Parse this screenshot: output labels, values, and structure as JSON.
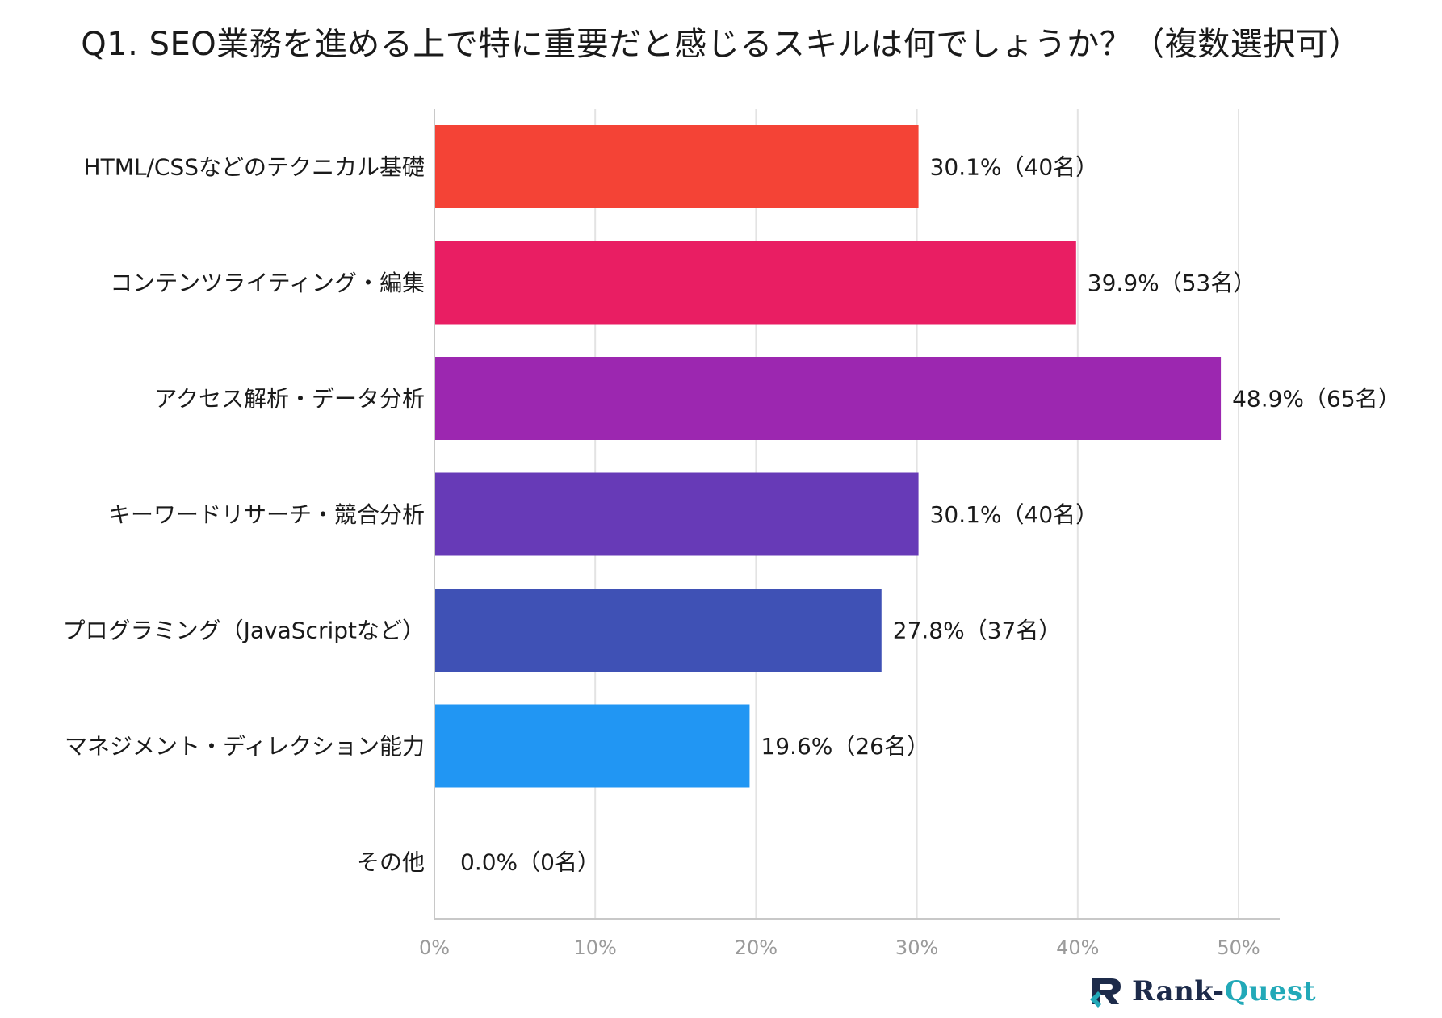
{
  "title": "Q1. SEO業務を進める上で特に重要だと感じるスキルは何でしょうか？（複数選択可）",
  "chart_data": {
    "type": "bar",
    "orientation": "horizontal",
    "title": "Q1. SEO業務を進める上で特に重要だと感じるスキルは何でしょうか？（複数選択可）",
    "xlabel": "",
    "ylabel": "",
    "xlim": [
      0,
      50
    ],
    "xticks": [
      0,
      10,
      20,
      30,
      40,
      50
    ],
    "xtick_labels": [
      "0%",
      "10%",
      "20%",
      "30%",
      "40%",
      "50%"
    ],
    "grid": true,
    "legend": "none",
    "categories": [
      "HTML/CSSなどのテクニカル基礎",
      "コンテンツライティング・編集",
      "アクセス解析・データ分析",
      "キーワードリサーチ・競合分析",
      "プログラミング（JavaScriptなど）",
      "マネジメント・ディレクション能力",
      "その他"
    ],
    "values": [
      30.1,
      39.9,
      48.9,
      30.1,
      27.8,
      19.6,
      0.0
    ],
    "data_labels": [
      "30.1%（40名）",
      "39.9%（53名）",
      "48.9%（65名）",
      "30.1%（40名）",
      "27.8%（37名）",
      "19.6%（26名）",
      "0.0%（0名）"
    ],
    "colors": [
      "#f44336",
      "#e91e63",
      "#9c27b0",
      "#673ab7",
      "#3f51b5",
      "#2196f3",
      "#03a9f4"
    ]
  },
  "logo": {
    "prefix": "Rank-",
    "suffix": "Quest",
    "icon": "rank-quest-logo-icon"
  }
}
